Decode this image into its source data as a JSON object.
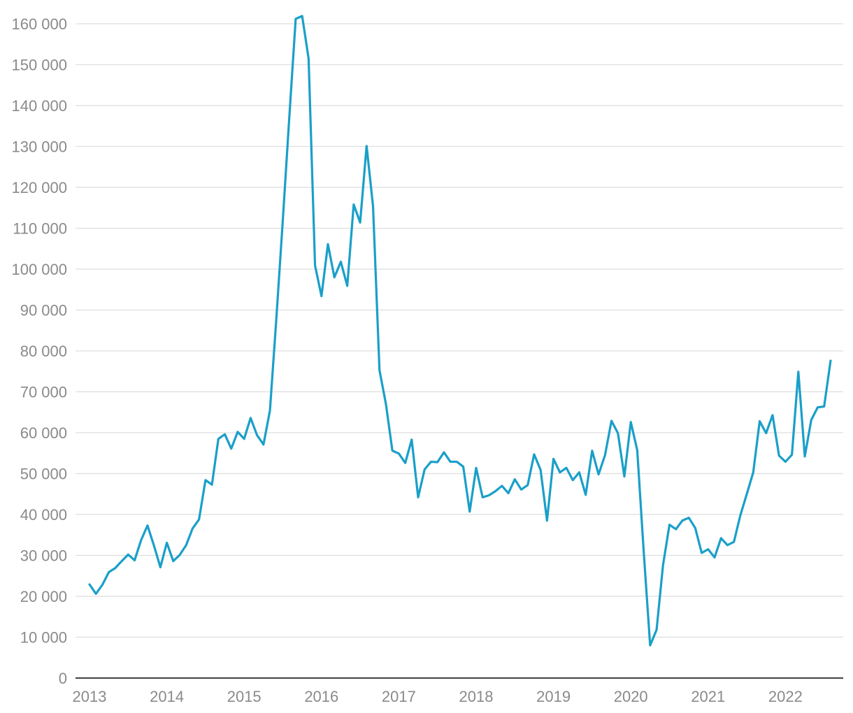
{
  "chart_data": {
    "type": "line",
    "title": "",
    "xlabel": "",
    "ylabel": "",
    "grid": true,
    "legend": "none",
    "color": "#1a9fc9",
    "x_range": [
      2013.0,
      2022.75
    ],
    "ylim": [
      0,
      160000
    ],
    "y_ticks": [
      0,
      10000,
      20000,
      30000,
      40000,
      50000,
      60000,
      70000,
      80000,
      90000,
      100000,
      110000,
      120000,
      130000,
      140000,
      150000,
      160000
    ],
    "y_tick_labels": [
      "0",
      "10 000",
      "20 000",
      "30 000",
      "40 000",
      "50 000",
      "60 000",
      "70 000",
      "80 000",
      "90 000",
      "100 000",
      "110 000",
      "120 000",
      "130 000",
      "140 000",
      "150 000",
      "160 000"
    ],
    "x_ticks": [
      2013,
      2014,
      2015,
      2016,
      2017,
      2018,
      2019,
      2020,
      2021,
      2022
    ],
    "x_tick_labels": [
      "2013",
      "2014",
      "2015",
      "2016",
      "2017",
      "2018",
      "2019",
      "2020",
      "2021",
      "2022"
    ],
    "series": [
      {
        "start": "2013-01",
        "frequency": "monthly",
        "values": [
          22900,
          20600,
          22800,
          25900,
          26900,
          28600,
          30200,
          28800,
          33700,
          37300,
          32400,
          27100,
          33100,
          28600,
          30100,
          32500,
          36600,
          38800,
          48400,
          47300,
          58500,
          59600,
          56100,
          60200,
          58500,
          63600,
          59400,
          57100,
          65400,
          88000,
          112000,
          137000,
          161200,
          161900,
          151500,
          100900,
          93400,
          106100,
          98000,
          101800,
          95900,
          115800,
          111400,
          130100,
          115400,
          75300,
          67000,
          55600,
          54900,
          52600,
          58300,
          44200,
          51000,
          52900,
          52800,
          55200,
          52900,
          52900,
          51700,
          40700,
          51400,
          44200,
          44700,
          45700,
          47000,
          45200,
          48600,
          46100,
          47200,
          54700,
          50900,
          38500,
          53600,
          50300,
          51400,
          48400,
          50300,
          44800,
          55600,
          49800,
          54500,
          62900,
          59900,
          49300,
          62600,
          55700,
          31000,
          8000,
          11800,
          27600,
          37500,
          36400,
          38500,
          39200,
          36700,
          30600,
          31500,
          29500,
          34200,
          32500,
          33300,
          39800,
          45000,
          50300,
          62800,
          59900,
          64300,
          54400,
          52900,
          54600,
          74900,
          54200,
          63100,
          66200,
          66400,
          77600
        ]
      }
    ]
  }
}
